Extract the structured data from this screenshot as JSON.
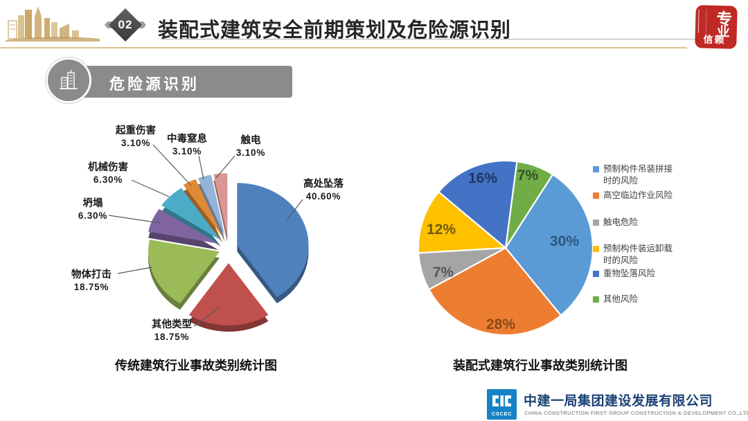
{
  "header": {
    "number": "02",
    "title": "装配式建筑安全前期策划及危险源识别"
  },
  "seal": {
    "char1": "专",
    "char2": "业",
    "word": "信赖"
  },
  "section_banner": {
    "label": "危险源识别"
  },
  "footer": {
    "logo_text": "CSCEC",
    "company": "中建一局集团建设发展有限公司",
    "company_en": "CHINA CONSTRUCTION FIRST GROUP CONSTRUCTION & DEVELOPMENT CO.,LTD."
  },
  "colors": {
    "gold_line": "#d9c28b",
    "banner_gray": "#8b8b8b",
    "seal_red": "#bf2a25",
    "logo_blue": "#1583c5"
  },
  "chart_data": [
    {
      "type": "pie",
      "style": "exploded-3d",
      "title": "传统建筑行业事故类别统计图",
      "slices": [
        {
          "label": "高处坠落",
          "value": 40.6,
          "display": "40.60%",
          "color": "#4F81BD"
        },
        {
          "label": "其他类型",
          "value": 18.75,
          "display": "18.75%",
          "color": "#C0504D"
        },
        {
          "label": "物体打击",
          "value": 18.75,
          "display": "18.75%",
          "color": "#9BBB59"
        },
        {
          "label": "坍塌",
          "value": 6.3,
          "display": "6.30%",
          "color": "#8064A2"
        },
        {
          "label": "机械伤害",
          "value": 6.3,
          "display": "6.30%",
          "color": "#4BACC6"
        },
        {
          "label": "起重伤害",
          "value": 3.1,
          "display": "3.10%",
          "color": "#E08A38"
        },
        {
          "label": "中毒窒息",
          "value": 3.1,
          "display": "3.10%",
          "color": "#95B3D7"
        },
        {
          "label": "触电",
          "value": 3.1,
          "display": "3.10%",
          "color": "#D99694"
        }
      ]
    },
    {
      "type": "pie",
      "style": "flat",
      "title": "装配式建筑行业事故类别统计图",
      "start_angle": 7.5,
      "slices": [
        {
          "label": "其他风险",
          "value": 7,
          "display": "7%",
          "color": "#70AD47",
          "label_color": "#33502a"
        },
        {
          "label": "预制构件吊装拼接时的风险",
          "value": 30,
          "display": "30%",
          "color": "#5B9BD5",
          "label_color": "#2a567c"
        },
        {
          "label": "高空临边作业风险",
          "value": 28,
          "display": "28%",
          "color": "#ED7D31",
          "label_color": "#8a4a17"
        },
        {
          "label": "触电危险",
          "value": 7,
          "display": "7%",
          "color": "#A5A5A5",
          "label_color": "#565656"
        },
        {
          "label": "预制构件装运卸载时的风险",
          "value": 12,
          "display": "12%",
          "color": "#FFC000",
          "label_color": "#6e5a10"
        },
        {
          "label": "重物坠落风险",
          "value": 16,
          "display": "16%",
          "color": "#4472C4",
          "label_color": "#21375f"
        }
      ],
      "legend_position": "right",
      "legend": [
        {
          "label": "预制构件吊装拼接\n时的风险",
          "color": "#5B9BD5"
        },
        {
          "label": "高空临边作业风险",
          "color": "#ED7D31"
        },
        {
          "label": "触电危险",
          "color": "#A5A5A5"
        },
        {
          "label": "预制构件装运卸载\n时的风险",
          "color": "#FFC000"
        },
        {
          "label": "重物坠落风险",
          "color": "#4472C4"
        },
        {
          "label": "其他风险",
          "color": "#70AD47"
        }
      ]
    }
  ]
}
